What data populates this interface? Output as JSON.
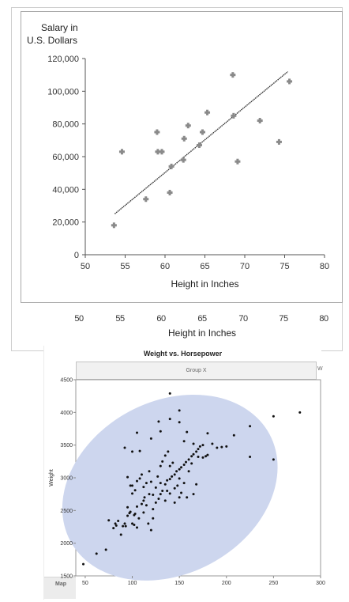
{
  "chart_data": [
    {
      "type": "scatter",
      "title": "",
      "ylabel": "Salary in U.S. Dollars",
      "ylabel_lines": [
        "Salary in",
        "U.S. Dollars"
      ],
      "xlabel": "Height in Inches",
      "xlim": [
        50,
        80
      ],
      "ylim": [
        0,
        120000
      ],
      "x_ticks": [
        "50",
        "55",
        "60",
        "65",
        "70",
        "75",
        "80"
      ],
      "y_ticks": [
        "0",
        "20,000",
        "40,000",
        "60,000",
        "80,000",
        "100,000",
        "120,000"
      ],
      "grid": false,
      "series": [
        {
          "marker": "cross",
          "color": "#8a8a8a",
          "points": [
            [
              53.6,
              18000
            ],
            [
              54.6,
              63000
            ],
            [
              57.6,
              34000
            ],
            [
              59.0,
              75000
            ],
            [
              59.1,
              63000
            ],
            [
              59.6,
              63000
            ],
            [
              60.6,
              38000
            ],
            [
              60.8,
              54000
            ],
            [
              62.3,
              58000
            ],
            [
              62.4,
              71000
            ],
            [
              62.9,
              79000
            ],
            [
              64.3,
              67000
            ],
            [
              64.7,
              75000
            ],
            [
              65.3,
              87000
            ],
            [
              68.5,
              110000
            ],
            [
              68.6,
              85000
            ],
            [
              69.1,
              57000
            ],
            [
              71.9,
              82000
            ],
            [
              74.3,
              69000
            ],
            [
              75.6,
              106000
            ]
          ]
        }
      ],
      "regression_line": {
        "x": [
          53.7,
          75.4
        ],
        "y": [
          25000,
          112000
        ],
        "color": "#333333"
      }
    },
    {
      "type": "scatter",
      "title": "Weight vs. Horsepower",
      "group_header": "Group X",
      "group_header_right": "W",
      "map_tab": "Map",
      "xlabel": "",
      "ylabel": "Weight",
      "xlim": [
        40,
        300
      ],
      "ylim": [
        1500,
        4500
      ],
      "x_ticks": [
        "50",
        "100",
        "150",
        "200",
        "250",
        "300"
      ],
      "y_ticks": [
        "1500",
        "2000",
        "2500",
        "3000",
        "3500",
        "4000",
        "4500"
      ],
      "grid": false,
      "density_ellipse": {
        "cx": 140,
        "cy": 2850,
        "rx_units": 120,
        "ry_units": 1320,
        "angle_deg": -28,
        "color": "#cdd6ee"
      },
      "series": [
        {
          "color": "#111111",
          "points": [
            [
              48,
              1680
            ],
            [
              62,
              1840
            ],
            [
              72,
              1900
            ],
            [
              75,
              2350
            ],
            [
              80,
              2230
            ],
            [
              83,
              2270
            ],
            [
              82,
              2300
            ],
            [
              85,
              2340
            ],
            [
              88,
              2130
            ],
            [
              90,
              2260
            ],
            [
              92,
              2300
            ],
            [
              93,
              2260
            ],
            [
              95,
              2420
            ],
            [
              97,
              2460
            ],
            [
              98,
              2480
            ],
            [
              100,
              2300
            ],
            [
              102,
              2280
            ],
            [
              103,
              2450
            ],
            [
              105,
              2240
            ],
            [
              107,
              2380
            ],
            [
              110,
              2600
            ],
            [
              112,
              2650
            ],
            [
              113,
              2700
            ],
            [
              115,
              2580
            ],
            [
              117,
              2300
            ],
            [
              120,
              2200
            ],
            [
              122,
              2520
            ],
            [
              125,
              2620
            ],
            [
              128,
              2680
            ],
            [
              130,
              2750
            ],
            [
              132,
              2800
            ],
            [
              135,
              2900
            ],
            [
              137,
              2960
            ],
            [
              140,
              2980
            ],
            [
              142,
              3020
            ],
            [
              145,
              3050
            ],
            [
              147,
              3100
            ],
            [
              150,
              3130
            ],
            [
              152,
              3160
            ],
            [
              155,
              3200
            ],
            [
              157,
              3240
            ],
            [
              160,
              3280
            ],
            [
              163,
              3330
            ],
            [
              165,
              3360
            ],
            [
              168,
              3400
            ],
            [
              170,
              3440
            ],
            [
              172,
              3480
            ],
            [
              175,
              3310
            ],
            [
              178,
              3330
            ],
            [
              180,
              3350
            ],
            [
              95,
              3010
            ],
            [
              98,
              2880
            ],
            [
              100,
              2760
            ],
            [
              103,
              2810
            ],
            [
              105,
              2950
            ],
            [
              108,
              2990
            ],
            [
              110,
              3050
            ],
            [
              112,
              2860
            ],
            [
              115,
              2920
            ],
            [
              118,
              3100
            ],
            [
              120,
              2940
            ],
            [
              122,
              2740
            ],
            [
              125,
              2850
            ],
            [
              127,
              3020
            ],
            [
              130,
              3180
            ],
            [
              132,
              3250
            ],
            [
              135,
              3340
            ],
            [
              138,
              3400
            ],
            [
              140,
              3180
            ],
            [
              143,
              3230
            ],
            [
              145,
              2840
            ],
            [
              148,
              2880
            ],
            [
              150,
              2990
            ],
            [
              152,
              2770
            ],
            [
              155,
              2920
            ],
            [
              158,
              2700
            ],
            [
              160,
              3100
            ],
            [
              163,
              3220
            ],
            [
              165,
              3520
            ],
            [
              168,
              2900
            ],
            [
              170,
              3320
            ],
            [
              175,
              3500
            ],
            [
              180,
              3680
            ],
            [
              185,
              3520
            ],
            [
              190,
              3460
            ],
            [
              195,
              3470
            ],
            [
              200,
              3480
            ],
            [
              208,
              3650
            ],
            [
              225,
              3320
            ],
            [
              225,
              3790
            ],
            [
              250,
              3940
            ],
            [
              250,
              3280
            ],
            [
              278,
              4000
            ],
            [
              140,
              4290
            ],
            [
              150,
              4030
            ],
            [
              130,
              3710
            ],
            [
              150,
              3850
            ],
            [
              158,
              3700
            ],
            [
              155,
              3560
            ],
            [
              140,
              3900
            ],
            [
              128,
              3860
            ],
            [
              105,
              3690
            ],
            [
              100,
              3400
            ],
            [
              92,
              3460
            ],
            [
              108,
              3410
            ],
            [
              120,
              3600
            ],
            [
              135,
              2650
            ],
            [
              112,
              2470
            ],
            [
              105,
              2560
            ],
            [
              100,
              2880
            ],
            [
              118,
              2750
            ],
            [
              122,
              2380
            ],
            [
              130,
              2920
            ],
            [
              137,
              2800
            ],
            [
              140,
              2760
            ],
            [
              145,
              2620
            ],
            [
              150,
              2700
            ],
            [
              165,
              2750
            ],
            [
              95,
              2550
            ],
            [
              102,
              2430
            ]
          ]
        }
      ]
    }
  ],
  "ghost_axis": {
    "x_ticks": [
      "50",
      "55",
      "60",
      "65",
      "70",
      "75",
      "80"
    ],
    "xlabel": "Height in Inches"
  }
}
